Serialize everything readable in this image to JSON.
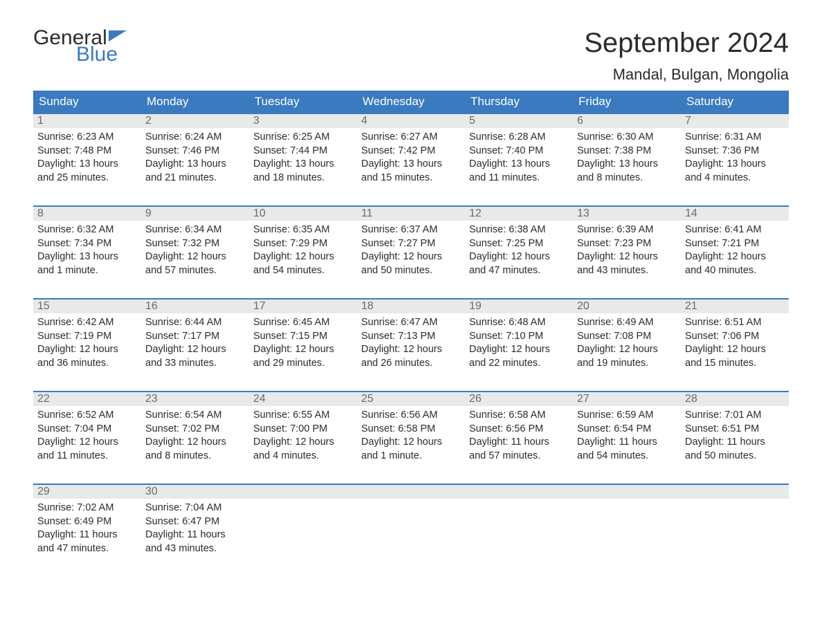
{
  "logo": {
    "text1": "General",
    "text2": "Blue",
    "brand_color": "#3a7abf"
  },
  "title": "September 2024",
  "location": "Mandal, Bulgan, Mongolia",
  "colors": {
    "header_bg": "#3a7abf",
    "header_text": "#ffffff",
    "daynum_bg": "#e9e9e9",
    "daynum_text": "#6a6a6a",
    "body_text": "#2b2b2b",
    "week_border": "#3a7abf",
    "background": "#ffffff"
  },
  "typography": {
    "title_fontsize": 40,
    "location_fontsize": 22,
    "dayhead_fontsize": 17,
    "daynum_fontsize": 16,
    "detail_fontsize": 14.5,
    "logo_fontsize": 30
  },
  "day_headers": [
    "Sunday",
    "Monday",
    "Tuesday",
    "Wednesday",
    "Thursday",
    "Friday",
    "Saturday"
  ],
  "weeks": [
    [
      {
        "n": "1",
        "sunrise": "6:23 AM",
        "sunset": "7:48 PM",
        "daylight": "13 hours and 25 minutes."
      },
      {
        "n": "2",
        "sunrise": "6:24 AM",
        "sunset": "7:46 PM",
        "daylight": "13 hours and 21 minutes."
      },
      {
        "n": "3",
        "sunrise": "6:25 AM",
        "sunset": "7:44 PM",
        "daylight": "13 hours and 18 minutes."
      },
      {
        "n": "4",
        "sunrise": "6:27 AM",
        "sunset": "7:42 PM",
        "daylight": "13 hours and 15 minutes."
      },
      {
        "n": "5",
        "sunrise": "6:28 AM",
        "sunset": "7:40 PM",
        "daylight": "13 hours and 11 minutes."
      },
      {
        "n": "6",
        "sunrise": "6:30 AM",
        "sunset": "7:38 PM",
        "daylight": "13 hours and 8 minutes."
      },
      {
        "n": "7",
        "sunrise": "6:31 AM",
        "sunset": "7:36 PM",
        "daylight": "13 hours and 4 minutes."
      }
    ],
    [
      {
        "n": "8",
        "sunrise": "6:32 AM",
        "sunset": "7:34 PM",
        "daylight": "13 hours and 1 minute."
      },
      {
        "n": "9",
        "sunrise": "6:34 AM",
        "sunset": "7:32 PM",
        "daylight": "12 hours and 57 minutes."
      },
      {
        "n": "10",
        "sunrise": "6:35 AM",
        "sunset": "7:29 PM",
        "daylight": "12 hours and 54 minutes."
      },
      {
        "n": "11",
        "sunrise": "6:37 AM",
        "sunset": "7:27 PM",
        "daylight": "12 hours and 50 minutes."
      },
      {
        "n": "12",
        "sunrise": "6:38 AM",
        "sunset": "7:25 PM",
        "daylight": "12 hours and 47 minutes."
      },
      {
        "n": "13",
        "sunrise": "6:39 AM",
        "sunset": "7:23 PM",
        "daylight": "12 hours and 43 minutes."
      },
      {
        "n": "14",
        "sunrise": "6:41 AM",
        "sunset": "7:21 PM",
        "daylight": "12 hours and 40 minutes."
      }
    ],
    [
      {
        "n": "15",
        "sunrise": "6:42 AM",
        "sunset": "7:19 PM",
        "daylight": "12 hours and 36 minutes."
      },
      {
        "n": "16",
        "sunrise": "6:44 AM",
        "sunset": "7:17 PM",
        "daylight": "12 hours and 33 minutes."
      },
      {
        "n": "17",
        "sunrise": "6:45 AM",
        "sunset": "7:15 PM",
        "daylight": "12 hours and 29 minutes."
      },
      {
        "n": "18",
        "sunrise": "6:47 AM",
        "sunset": "7:13 PM",
        "daylight": "12 hours and 26 minutes."
      },
      {
        "n": "19",
        "sunrise": "6:48 AM",
        "sunset": "7:10 PM",
        "daylight": "12 hours and 22 minutes."
      },
      {
        "n": "20",
        "sunrise": "6:49 AM",
        "sunset": "7:08 PM",
        "daylight": "12 hours and 19 minutes."
      },
      {
        "n": "21",
        "sunrise": "6:51 AM",
        "sunset": "7:06 PM",
        "daylight": "12 hours and 15 minutes."
      }
    ],
    [
      {
        "n": "22",
        "sunrise": "6:52 AM",
        "sunset": "7:04 PM",
        "daylight": "12 hours and 11 minutes."
      },
      {
        "n": "23",
        "sunrise": "6:54 AM",
        "sunset": "7:02 PM",
        "daylight": "12 hours and 8 minutes."
      },
      {
        "n": "24",
        "sunrise": "6:55 AM",
        "sunset": "7:00 PM",
        "daylight": "12 hours and 4 minutes."
      },
      {
        "n": "25",
        "sunrise": "6:56 AM",
        "sunset": "6:58 PM",
        "daylight": "12 hours and 1 minute."
      },
      {
        "n": "26",
        "sunrise": "6:58 AM",
        "sunset": "6:56 PM",
        "daylight": "11 hours and 57 minutes."
      },
      {
        "n": "27",
        "sunrise": "6:59 AM",
        "sunset": "6:54 PM",
        "daylight": "11 hours and 54 minutes."
      },
      {
        "n": "28",
        "sunrise": "7:01 AM",
        "sunset": "6:51 PM",
        "daylight": "11 hours and 50 minutes."
      }
    ],
    [
      {
        "n": "29",
        "sunrise": "7:02 AM",
        "sunset": "6:49 PM",
        "daylight": "11 hours and 47 minutes."
      },
      {
        "n": "30",
        "sunrise": "7:04 AM",
        "sunset": "6:47 PM",
        "daylight": "11 hours and 43 minutes."
      },
      {
        "empty": true
      },
      {
        "empty": true
      },
      {
        "empty": true
      },
      {
        "empty": true
      },
      {
        "empty": true
      }
    ]
  ],
  "labels": {
    "sunrise": "Sunrise: ",
    "sunset": "Sunset: ",
    "daylight": "Daylight: "
  }
}
